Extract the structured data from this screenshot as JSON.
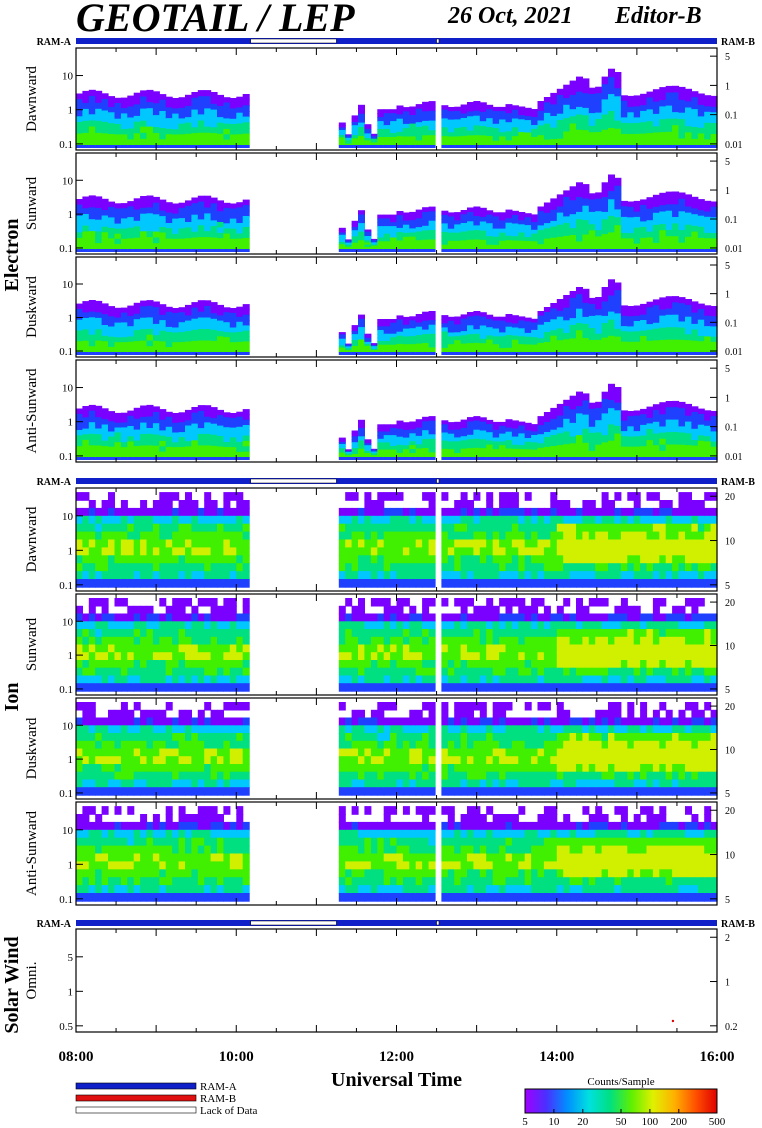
{
  "header": {
    "title": "GEOTAIL / LEP",
    "date": "26 Oct, 2021",
    "editor": "Editor-B"
  },
  "colors": {
    "ram_a": "#1020c8",
    "ram_b": "#e01010",
    "lack": "#ffffff",
    "colorbar": [
      "#ffffff",
      "#7a00ff",
      "#2040ff",
      "#00c8ff",
      "#00e080",
      "#40f000",
      "#d0f000",
      "#ffb000",
      "#ff5000",
      "#e00000"
    ]
  },
  "chart_data": {
    "type": "heatmap",
    "xlabel": "Universal Time",
    "x_ticks": [
      "08:00",
      "10:00",
      "12:00",
      "14:00",
      "16:00"
    ],
    "x_range_hours": [
      8,
      16
    ],
    "data_gaps_hours": [
      [
        10.18,
        11.25
      ],
      [
        12.5,
        12.53
      ]
    ],
    "ram_bar_label_left": "RAM-A",
    "ram_bar_label_right": "RAM-B",
    "groups": [
      {
        "name": "Electron",
        "panels": [
          {
            "label": "Dawnward",
            "y_left_ticks": [
              "10",
              "1",
              "0.1"
            ],
            "y_right_ticks": [
              "5",
              "1",
              "0.1",
              "0.01"
            ]
          },
          {
            "label": "Sunward",
            "y_left_ticks": [
              "10",
              "1",
              "0.1"
            ],
            "y_right_ticks": [
              "5",
              "1",
              "0.1",
              "0.01"
            ]
          },
          {
            "label": "Duskward",
            "y_left_ticks": [
              "10",
              "1",
              "0.1"
            ],
            "y_right_ticks": [
              "5",
              "1",
              "0.1",
              "0.01"
            ]
          },
          {
            "label": "Anti-Sunward",
            "y_left_ticks": [
              "10",
              "1",
              "0.1"
            ],
            "y_right_ticks": [
              "5",
              "1",
              "0.1",
              "0.01"
            ]
          }
        ]
      },
      {
        "name": "Ion",
        "panels": [
          {
            "label": "Dawnward",
            "y_left_ticks": [
              "10",
              "1",
              "0.1"
            ],
            "y_right_ticks": [
              "20",
              "10",
              "5"
            ]
          },
          {
            "label": "Sunward",
            "y_left_ticks": [
              "10",
              "1",
              "0.1"
            ],
            "y_right_ticks": [
              "20",
              "10",
              "5"
            ]
          },
          {
            "label": "Duskward",
            "y_left_ticks": [
              "10",
              "1",
              "0.1"
            ],
            "y_right_ticks": [
              "20",
              "10",
              "5"
            ]
          },
          {
            "label": "Anti-Sunward",
            "y_left_ticks": [
              "10",
              "1",
              "0.1"
            ],
            "y_right_ticks": [
              "20",
              "10",
              "5"
            ]
          }
        ]
      },
      {
        "name": "Solar Wind",
        "panels": [
          {
            "label": "Omni.",
            "y_left_ticks": [
              "5",
              "1",
              "0.5"
            ],
            "y_right_ticks": [
              "2",
              "1",
              "0.2"
            ]
          }
        ]
      }
    ],
    "legend": {
      "ram_a": "RAM-A",
      "ram_b": "RAM-B",
      "lack": "Lack of Data"
    },
    "colorbar": {
      "title": "Counts/Sample",
      "ticks": [
        "5",
        "10",
        "20",
        "50",
        "100",
        "200",
        "500"
      ]
    }
  }
}
